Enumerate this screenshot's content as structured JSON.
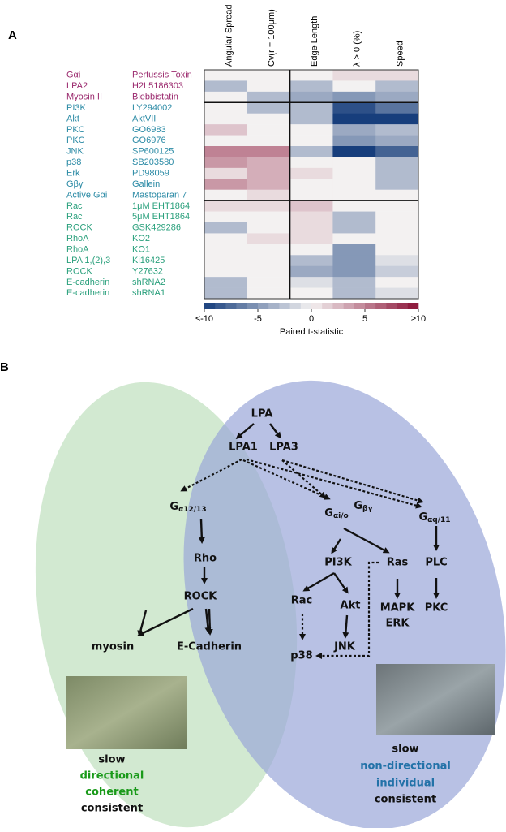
{
  "panel_labels": [
    "A",
    "B"
  ],
  "chart_data": {
    "type": "heatmap",
    "columns": [
      "Angular Spread",
      "Cv(r = 100μm)",
      "Edge Length",
      "λ > 0 (%)",
      "Speed"
    ],
    "row_targets": [
      "Gαi",
      "LPA2",
      "Myosin II",
      "PI3K",
      "Akt",
      "PKC",
      "PKC",
      "JNK",
      "p38",
      "Erk",
      "Gβγ",
      "Active Gαi",
      "Rac",
      "Rac",
      "ROCK",
      "RhoA",
      "RhoA",
      "LPA 1,(2),3",
      "ROCK",
      "E-cadherin",
      "E-cadherin"
    ],
    "row_treatments": [
      "Pertussis Toxin",
      "H2L5186303",
      "Blebbistatin",
      "LY294002",
      "AktVII",
      "GO6983",
      "GO6976",
      "SP600125",
      "SB203580",
      "PD98059",
      "Gallein",
      "Mastoparan 7",
      "1μM EHT1864",
      "5μM EHT1864",
      "GSK429286",
      "KO2",
      "KO1",
      "Ki16425",
      "Y27632",
      "shRNA2",
      "shRNA1"
    ],
    "values": [
      [
        0,
        0,
        0,
        1,
        1
      ],
      [
        -3,
        0,
        -3,
        0,
        -3
      ],
      [
        0,
        -3,
        -4,
        -5,
        -4
      ],
      [
        0,
        -3,
        -3,
        -9,
        -7
      ],
      [
        0,
        0,
        -3,
        -10,
        -10
      ],
      [
        2,
        0,
        0,
        -4,
        -3
      ],
      [
        0,
        0,
        0,
        -5,
        -4
      ],
      [
        5,
        5,
        -3,
        -10,
        -8
      ],
      [
        4,
        3,
        0,
        0,
        -3
      ],
      [
        1,
        3,
        1,
        0,
        -3
      ],
      [
        4,
        3,
        0,
        0,
        -3
      ],
      [
        0,
        1,
        0,
        0,
        0
      ],
      [
        1,
        1,
        2,
        0,
        0
      ],
      [
        0,
        0,
        1,
        -3,
        0
      ],
      [
        -3,
        0,
        1,
        -3,
        0
      ],
      [
        0,
        1,
        1,
        0,
        0
      ],
      [
        0,
        0,
        0,
        -5,
        0
      ],
      [
        0,
        0,
        -3,
        -5,
        -1
      ],
      [
        0,
        0,
        -4,
        -5,
        -2
      ],
      [
        -3,
        0,
        -1,
        -3,
        0
      ],
      [
        -3,
        0,
        0,
        -3,
        -1
      ]
    ],
    "clim": [
      -10,
      10
    ],
    "cticks": [
      {
        "value": -10,
        "label": "≤-10"
      },
      -5,
      0,
      5,
      {
        "value": 10,
        "label": "≥10"
      }
    ],
    "colorbar_label": "Paired t-statistic",
    "colors": {
      "negative": "#173e7c",
      "middle": "#f3f1f1",
      "positive": "#8a1236"
    }
  },
  "diagram": {
    "nodes": [
      {
        "label": "LPA"
      },
      {
        "label": "LPA1"
      },
      {
        "label": "LPA3"
      },
      {
        "label": "G",
        "sub": "α12/13"
      },
      {
        "label": "G",
        "sub": "αi/o"
      },
      {
        "label": "G",
        "sub": "βγ"
      },
      {
        "label": "G",
        "sub": "αq/11"
      },
      {
        "label": "Rho"
      },
      {
        "label": "ROCK"
      },
      {
        "label": "myosin"
      },
      {
        "label": "E-Cadherin"
      },
      {
        "label": "PI3K"
      },
      {
        "label": "Ras"
      },
      {
        "label": "PLC"
      },
      {
        "label": "Rac"
      },
      {
        "label": "Akt"
      },
      {
        "label": "MAPK"
      },
      {
        "label": "ERK"
      },
      {
        "label": "PKC"
      },
      {
        "label": "JNK"
      },
      {
        "label": "p38"
      }
    ],
    "left_caption": [
      "slow",
      "directional",
      "coherent",
      "consistent"
    ],
    "right_caption": [
      "slow",
      "non-directional",
      "individual",
      "consistent"
    ]
  }
}
